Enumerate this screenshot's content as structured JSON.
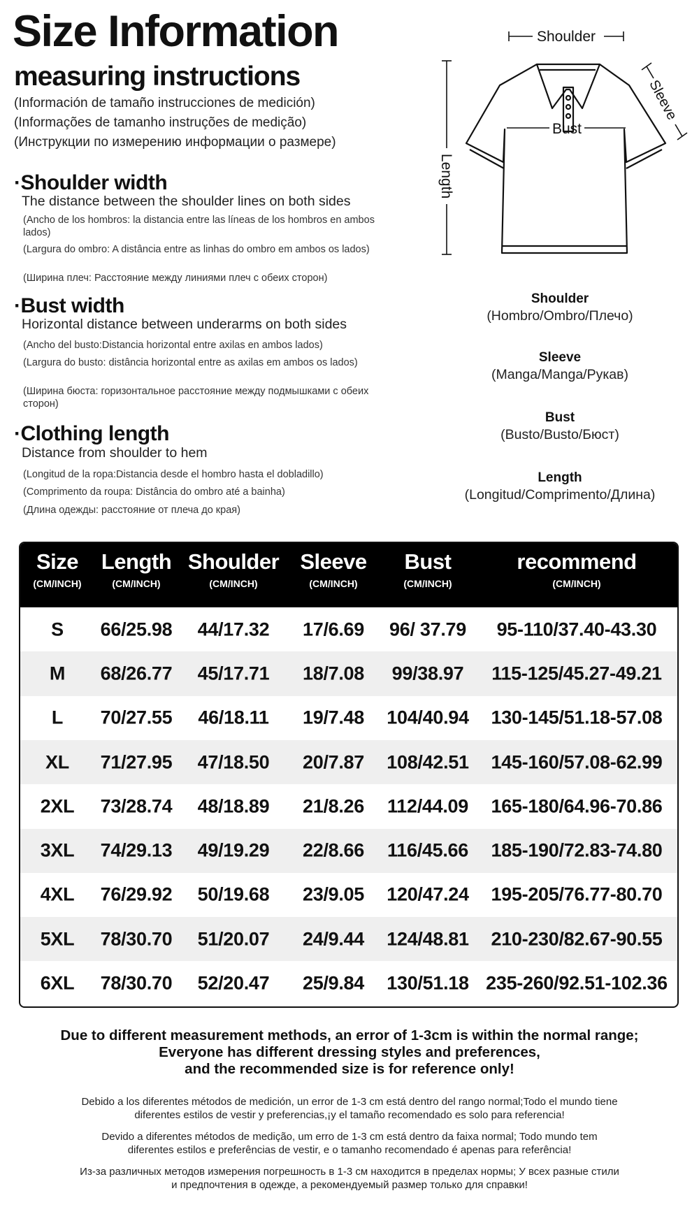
{
  "header": {
    "title": "Size Information",
    "subtitle": "measuring instructions",
    "translations": [
      "(Información de tamaño instrucciones de medición)",
      "(Informações de tamanho instruções de medição)",
      "(Инструкции по измерению информации о размере)"
    ]
  },
  "sections": [
    {
      "heading": "·Shoulder width",
      "desc": "The distance between the shoulder lines on both sides",
      "notes": [
        "(Ancho de los hombros: la distancia entre las líneas de los hombros en ambos lados)",
        "(Largura do ombro: A distância entre as linhas do ombro em ambos os lados)",
        "(Ширина плеч: Расстояние между линиями плеч с обеих сторон)"
      ]
    },
    {
      "heading": "·Bust width",
      "desc": "Horizontal distance between underarms on both sides",
      "notes": [
        "(Ancho del busto:Distancia horizontal entre axilas en ambos lados)",
        "(Largura do busto: distância horizontal entre as axilas em ambos os lados)",
        "(Ширина бюста: горизонтальное расстояние между подмышками с обеих сторон)"
      ]
    },
    {
      "heading": "·Clothing length",
      "desc": "Distance from shoulder to hem",
      "notes": [
        "(Longitud de la ropa:Distancia desde el hombro hasta el dobladillo)",
        "(Comprimento da roupa: Distância do ombro até a bainha)",
        "(Длина одежды: расстояние от плеча до края)"
      ]
    }
  ],
  "diagram": {
    "shoulder": "Shoulder",
    "sleeve": "Sleeve",
    "bust": "Bust",
    "length": "Length"
  },
  "legend": [
    {
      "label": "Shoulder",
      "translation": "(Hombro/Ombro/Плечо)"
    },
    {
      "label": "Sleeve",
      "translation": "(Manga/Manga/Рукав)"
    },
    {
      "label": "Bust",
      "translation": "(Busto/Busto/Бюст)"
    },
    {
      "label": "Length",
      "translation": "(Longitud/Comprimento/Длина)"
    }
  ],
  "table": {
    "columns": [
      {
        "title": "Size",
        "unit": "(CM/INCH)"
      },
      {
        "title": "Length",
        "unit": "(CM/INCH)"
      },
      {
        "title": "Shoulder",
        "unit": "(CM/INCH)"
      },
      {
        "title": "Sleeve",
        "unit": "(CM/INCH)"
      },
      {
        "title": "Bust",
        "unit": "(CM/INCH)"
      },
      {
        "title": "recommend",
        "unit": "(CM/INCH)"
      }
    ],
    "rows": [
      [
        "S",
        "66/25.98",
        "44/17.32",
        "17/6.69",
        "96/ 37.79",
        "95-110/37.40-43.30"
      ],
      [
        "M",
        "68/26.77",
        "45/17.71",
        "18/7.08",
        "99/38.97",
        "115-125/45.27-49.21"
      ],
      [
        "L",
        "70/27.55",
        "46/18.11",
        "19/7.48",
        "104/40.94",
        "130-145/51.18-57.08"
      ],
      [
        "XL",
        "71/27.95",
        "47/18.50",
        "20/7.87",
        "108/42.51",
        "145-160/57.08-62.99"
      ],
      [
        "2XL",
        "73/28.74",
        "48/18.89",
        "21/8.26",
        "112/44.09",
        "165-180/64.96-70.86"
      ],
      [
        "3XL",
        "74/29.13",
        "49/19.29",
        "22/8.66",
        "116/45.66",
        "185-190/72.83-74.80"
      ],
      [
        "4XL",
        "76/29.92",
        "50/19.68",
        "23/9.05",
        "120/47.24",
        "195-205/76.77-80.70"
      ],
      [
        "5XL",
        "78/30.70",
        "51/20.07",
        "24/9.44",
        "124/48.81",
        "210-230/82.67-90.55"
      ],
      [
        "6XL",
        "78/30.70",
        "52/20.47",
        "25/9.84",
        "130/51.18",
        "235-260/92.51-102.36"
      ]
    ]
  },
  "footer": {
    "bold_lines": [
      "Due to different measurement methods, an error of 1-3cm is within the normal range;",
      "Everyone has different dressing styles and preferences,",
      "and the recommended size is for reference only!"
    ],
    "es": [
      "Debido a los diferentes métodos de medición, un error de 1-3 cm está dentro del rango normal;Todo el mundo tiene",
      "diferentes estilos de vestir y preferencias,¡y el tamaño recomendado es solo para referencia!"
    ],
    "pt": [
      "Devido a diferentes métodos de medição, um erro de 1-3 cm está dentro da faixa normal; Todo mundo tem",
      "diferentes estilos e preferências de vestir, e o tamanho recomendado é apenas para referência!"
    ],
    "ru": [
      "Из-за различных методов измерения погрешность в 1-3 см находится в пределах нормы; У всех разные стили",
      "и предпочтения в одежде, а рекомендуемый размер только для справки!"
    ]
  }
}
